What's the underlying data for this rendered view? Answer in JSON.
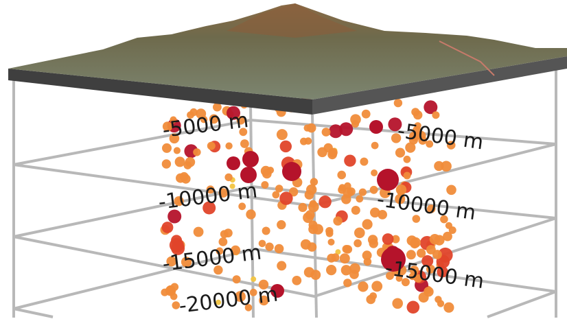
{
  "depth_labels": {
    "left": [
      "-5000 m",
      "-10000 m",
      "-15000 m",
      "-20000 m"
    ],
    "right": [
      "-5000 m",
      "-10000 m",
      "-15000 m"
    ]
  },
  "colors": {
    "terrain": "#6f7a5a",
    "slab": "#4a4a4a",
    "grid": "#b8b8b8",
    "quake_small": "#f08c3a",
    "quake_medium": "#e0452a",
    "quake_large": "#b5132b",
    "quake_faint": "#f2c440"
  }
}
